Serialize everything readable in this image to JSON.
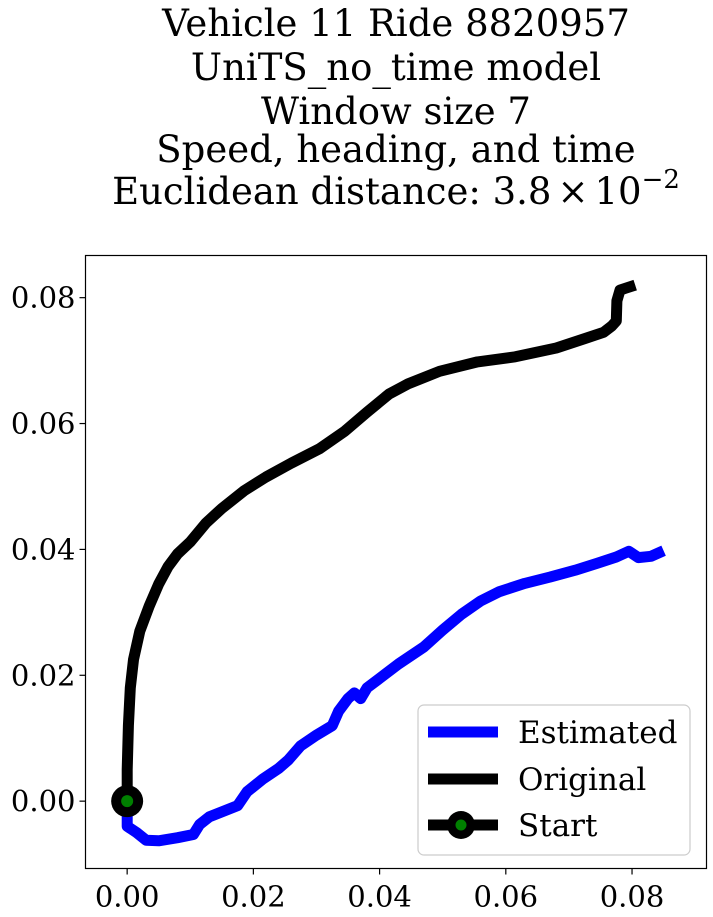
{
  "chart_data": {
    "type": "line",
    "title_lines": [
      "Vehicle 11 Ride 8820957",
      "UniTS_no_time model",
      "Window size 7",
      "Speed, heading, and time"
    ],
    "title_distance_prefix": "Euclidean distance: 3.8",
    "title_distance_times": "×",
    "title_distance_base": "10",
    "title_distance_exponent": "−2",
    "xlim": [
      -0.0066,
      0.0918
    ],
    "ylim": [
      -0.0107,
      0.0867
    ],
    "grid": false,
    "legend_position": "lower-right",
    "x_ticks": [
      {
        "value": 0.0,
        "label": "0.00"
      },
      {
        "value": 0.02,
        "label": "0.02"
      },
      {
        "value": 0.04,
        "label": "0.04"
      },
      {
        "value": 0.06,
        "label": "0.06"
      },
      {
        "value": 0.08,
        "label": "0.08"
      }
    ],
    "y_ticks": [
      {
        "value": 0.0,
        "label": "0.00"
      },
      {
        "value": 0.02,
        "label": "0.02"
      },
      {
        "value": 0.04,
        "label": "0.04"
      },
      {
        "value": 0.06,
        "label": "0.06"
      },
      {
        "value": 0.08,
        "label": "0.08"
      }
    ],
    "series": [
      {
        "name": "Estimated",
        "color": "#0000ff",
        "x": [
          0.0,
          0.0,
          0.0015,
          0.003,
          0.005,
          0.008,
          0.0105,
          0.0115,
          0.013,
          0.0155,
          0.0175,
          0.019,
          0.0215,
          0.024,
          0.0255,
          0.0275,
          0.03,
          0.0325,
          0.0335,
          0.035,
          0.036,
          0.037,
          0.038,
          0.04,
          0.043,
          0.047,
          0.05,
          0.053,
          0.056,
          0.059,
          0.063,
          0.067,
          0.071,
          0.0745,
          0.0775,
          0.0795,
          0.081,
          0.083,
          0.085
        ],
        "y": [
          0.0,
          -0.004,
          -0.005,
          -0.0062,
          -0.0063,
          -0.0058,
          -0.0053,
          -0.0037,
          -0.0025,
          -0.0015,
          -0.0007,
          0.0015,
          0.0035,
          0.0052,
          0.0065,
          0.0088,
          0.0105,
          0.012,
          0.0143,
          0.0163,
          0.0172,
          0.0163,
          0.018,
          0.0195,
          0.0218,
          0.0245,
          0.0272,
          0.0297,
          0.0318,
          0.0333,
          0.0346,
          0.0356,
          0.0367,
          0.0378,
          0.0388,
          0.0397,
          0.0387,
          0.0389,
          0.0398
        ]
      },
      {
        "name": "Original",
        "color": "#000000",
        "x": [
          0.0,
          0.0,
          0.0002,
          0.0005,
          0.001,
          0.002,
          0.0035,
          0.005,
          0.0065,
          0.008,
          0.01,
          0.0125,
          0.015,
          0.0185,
          0.022,
          0.026,
          0.0305,
          0.0345,
          0.038,
          0.0415,
          0.0445,
          0.0495,
          0.0555,
          0.0615,
          0.068,
          0.0725,
          0.0755,
          0.0768,
          0.0775,
          0.0776,
          0.0781,
          0.079,
          0.0805
        ],
        "y": [
          0.0,
          0.005,
          0.012,
          0.018,
          0.0225,
          0.027,
          0.031,
          0.0345,
          0.0373,
          0.0393,
          0.0412,
          0.0442,
          0.0465,
          0.0493,
          0.0515,
          0.0537,
          0.056,
          0.0588,
          0.0618,
          0.0647,
          0.0663,
          0.0683,
          0.0698,
          0.0706,
          0.072,
          0.0735,
          0.0745,
          0.0755,
          0.0763,
          0.0795,
          0.0812,
          0.0815,
          0.082
        ]
      }
    ],
    "start": {
      "name": "Start",
      "x": 0.0,
      "y": 0.0,
      "marker_face": "#008000",
      "marker_edge": "#000000"
    }
  }
}
